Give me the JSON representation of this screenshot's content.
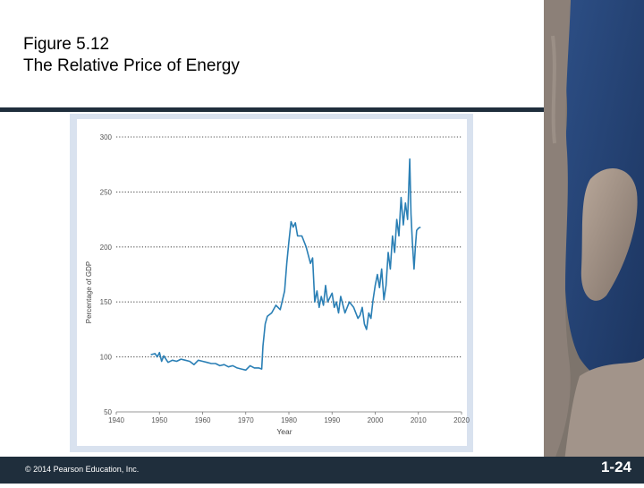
{
  "slide": {
    "title_line1": "Figure 5.12",
    "title_line2": "The Relative Price of Energy",
    "copyright": "© 2014 Pearson Education, Inc.",
    "slide_number": "1-24"
  },
  "colors": {
    "series": "#2a7fb5",
    "rule": "#1f2e3c",
    "frame": "#d9e2ef"
  },
  "chart_data": {
    "type": "line",
    "title": "",
    "xlabel": "Year",
    "ylabel": "Percentage of GDP",
    "xlim": [
      1940,
      2020
    ],
    "ylim": [
      50,
      300
    ],
    "xticks": [
      1940,
      1950,
      1960,
      1970,
      1980,
      1990,
      2000,
      2010,
      2020
    ],
    "yticks": [
      50,
      100,
      150,
      200,
      250,
      300
    ],
    "grid": "horizontal dotted",
    "series": [
      {
        "x": [
          1948,
          1949,
          1949.5,
          1950,
          1950.5,
          1951,
          1952,
          1953,
          1954,
          1955,
          1956,
          1957,
          1958,
          1959,
          1960,
          1961,
          1962,
          1963,
          1964,
          1965,
          1966,
          1967,
          1968,
          1969,
          1970,
          1971,
          1972,
          1973,
          1973.7,
          1974,
          1974.5,
          1975,
          1976,
          1977,
          1978,
          1979,
          1979.5,
          1980,
          1980.5,
          1981,
          1981.5,
          1982,
          1983,
          1984,
          1985,
          1985.5,
          1986,
          1986.5,
          1987,
          1987.5,
          1988,
          1988.5,
          1989,
          1990,
          1990.5,
          1991,
          1991.5,
          1992,
          1993,
          1994,
          1995,
          1996,
          1996.5,
          1997,
          1997.5,
          1998,
          1998.5,
          1999,
          1999.5,
          2000,
          2000.5,
          2001,
          2001.5,
          2002,
          2002.5,
          2003,
          2003.5,
          2004,
          2004.5,
          2005,
          2005.5,
          2006,
          2006.5,
          2007,
          2007.5,
          2008,
          2008.3,
          2008.6,
          2009,
          2009.3,
          2009.6,
          2010,
          2010.5
        ],
        "values": [
          102,
          103,
          100,
          104,
          96,
          101,
          95,
          97,
          96,
          98,
          97,
          96,
          93,
          97,
          96,
          95,
          94,
          94,
          92,
          93,
          91,
          92,
          90,
          89,
          88,
          92,
          90,
          90,
          89,
          110,
          130,
          137,
          140,
          147,
          143,
          160,
          185,
          205,
          223,
          218,
          222,
          210,
          210,
          200,
          185,
          190,
          150,
          160,
          145,
          155,
          147,
          165,
          150,
          158,
          145,
          150,
          140,
          155,
          140,
          150,
          145,
          135,
          138,
          145,
          130,
          125,
          140,
          135,
          152,
          165,
          175,
          163,
          180,
          152,
          165,
          195,
          180,
          210,
          195,
          225,
          210,
          245,
          220,
          240,
          225,
          280,
          230,
          205,
          180,
          200,
          215,
          217,
          218
        ]
      }
    ]
  }
}
